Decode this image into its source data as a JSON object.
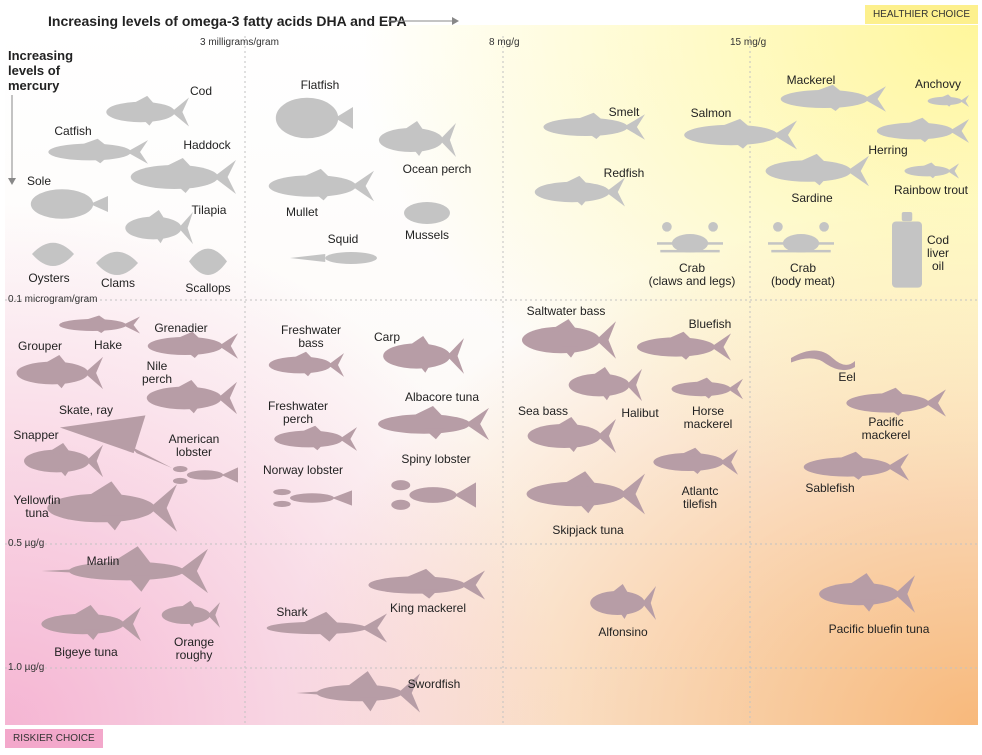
{
  "chart_data": {
    "type": "scatter",
    "title": "Increasing levels of omega-3 fatty acids DHA and EPA",
    "ylabel": "Increasing levels of mercury",
    "x_ticks": [
      "3 milligrams/gram",
      "8 mg/g",
      "15 mg/g"
    ],
    "y_ticks": [
      "0.1 microgram/gram",
      "0.5 µg/g",
      "1.0 µg/g"
    ],
    "corner_top": "HEALTHIER CHOICE",
    "corner_bottom": "RISKIER CHOICE",
    "grid": true,
    "items": [
      {
        "name": "Cod",
        "omega3_band": "<3 mg/g",
        "mercury_band": "<0.1 µg/g"
      },
      {
        "name": "Catfish",
        "omega3_band": "<3 mg/g",
        "mercury_band": "<0.1 µg/g"
      },
      {
        "name": "Haddock",
        "omega3_band": "<3 mg/g",
        "mercury_band": "<0.1 µg/g"
      },
      {
        "name": "Sole",
        "omega3_band": "<3 mg/g",
        "mercury_band": "<0.1 µg/g"
      },
      {
        "name": "Tilapia",
        "omega3_band": "<3 mg/g",
        "mercury_band": "<0.1 µg/g"
      },
      {
        "name": "Oysters",
        "omega3_band": "<3 mg/g",
        "mercury_band": "<0.1 µg/g"
      },
      {
        "name": "Clams",
        "omega3_band": "<3 mg/g",
        "mercury_band": "<0.1 µg/g"
      },
      {
        "name": "Scallops",
        "omega3_band": "<3 mg/g",
        "mercury_band": "<0.1 µg/g"
      },
      {
        "name": "Flatfish",
        "omega3_band": "3-8 mg/g",
        "mercury_band": "<0.1 µg/g"
      },
      {
        "name": "Ocean perch",
        "omega3_band": "3-8 mg/g",
        "mercury_band": "<0.1 µg/g"
      },
      {
        "name": "Mullet",
        "omega3_band": "3-8 mg/g",
        "mercury_band": "<0.1 µg/g"
      },
      {
        "name": "Mussels",
        "omega3_band": "3-8 mg/g",
        "mercury_band": "<0.1 µg/g"
      },
      {
        "name": "Squid",
        "omega3_band": "3-8 mg/g",
        "mercury_band": "<0.1 µg/g"
      },
      {
        "name": "Smelt",
        "omega3_band": "8-15 mg/g",
        "mercury_band": "<0.1 µg/g"
      },
      {
        "name": "Redfish",
        "omega3_band": "8-15 mg/g",
        "mercury_band": "<0.1 µg/g"
      },
      {
        "name": "Crab\n(claws and legs)",
        "omega3_band": "8-15 mg/g",
        "mercury_band": "<0.1 µg/g"
      },
      {
        "name": "Salmon",
        "omega3_band": "8-15 mg/g",
        "mercury_band": "<0.1 µg/g"
      },
      {
        "name": "Crab\n(body meat)",
        "omega3_band": ">15 mg/g",
        "mercury_band": "<0.1 µg/g"
      },
      {
        "name": "Mackerel",
        "omega3_band": ">15 mg/g",
        "mercury_band": "<0.1 µg/g"
      },
      {
        "name": "Anchovy",
        "omega3_band": ">15 mg/g",
        "mercury_band": "<0.1 µg/g"
      },
      {
        "name": "Herring",
        "omega3_band": ">15 mg/g",
        "mercury_band": "<0.1 µg/g"
      },
      {
        "name": "Rainbow trout",
        "omega3_band": ">15 mg/g",
        "mercury_band": "<0.1 µg/g"
      },
      {
        "name": "Sardine",
        "omega3_band": ">15 mg/g",
        "mercury_band": "<0.1 µg/g"
      },
      {
        "name": "Cod\nliver\noil",
        "omega3_band": ">15 mg/g",
        "mercury_band": "<0.1 µg/g"
      },
      {
        "name": "Hake",
        "omega3_band": "<3 mg/g",
        "mercury_band": "0.1-0.5 µg/g"
      },
      {
        "name": "Grenadier",
        "omega3_band": "<3 mg/g",
        "mercury_band": "0.1-0.5 µg/g"
      },
      {
        "name": "Grouper",
        "omega3_band": "<3 mg/g",
        "mercury_band": "0.1-0.5 µg/g"
      },
      {
        "name": "Nile\nperch",
        "omega3_band": "<3 mg/g",
        "mercury_band": "0.1-0.5 µg/g"
      },
      {
        "name": "Skate, ray",
        "omega3_band": "<3 mg/g",
        "mercury_band": "0.1-0.5 µg/g"
      },
      {
        "name": "Snapper",
        "omega3_band": "<3 mg/g",
        "mercury_band": "0.1-0.5 µg/g"
      },
      {
        "name": "American\nlobster",
        "omega3_band": "<3 mg/g",
        "mercury_band": "0.1-0.5 µg/g"
      },
      {
        "name": "Yellowfin\ntuna",
        "omega3_band": "<3 mg/g",
        "mercury_band": "0.1-0.5 µg/g"
      },
      {
        "name": "Freshwater\nbass",
        "omega3_band": "3-8 mg/g",
        "mercury_band": "0.1-0.5 µg/g"
      },
      {
        "name": "Carp",
        "omega3_band": "3-8 mg/g",
        "mercury_band": "0.1-0.5 µg/g"
      },
      {
        "name": "Freshwater\nperch",
        "omega3_band": "3-8 mg/g",
        "mercury_band": "0.1-0.5 µg/g"
      },
      {
        "name": "Albacore tuna",
        "omega3_band": "3-8 mg/g",
        "mercury_band": "0.1-0.5 µg/g"
      },
      {
        "name": "Norway lobster",
        "omega3_band": "3-8 mg/g",
        "mercury_band": "0.1-0.5 µg/g"
      },
      {
        "name": "Spiny lobster",
        "omega3_band": "3-8 mg/g",
        "mercury_band": "0.1-0.5 µg/g"
      },
      {
        "name": "Saltwater bass",
        "omega3_band": "8-15 mg/g",
        "mercury_band": "0.1-0.5 µg/g"
      },
      {
        "name": "Bluefish",
        "omega3_band": "8-15 mg/g",
        "mercury_band": "0.1-0.5 µg/g"
      },
      {
        "name": "Sea bass",
        "omega3_band": "8-15 mg/g",
        "mercury_band": "0.1-0.5 µg/g"
      },
      {
        "name": "Halibut",
        "omega3_band": "8-15 mg/g",
        "mercury_band": "0.1-0.5 µg/g"
      },
      {
        "name": "Horse\nmackerel",
        "omega3_band": "8-15 mg/g",
        "mercury_band": "0.1-0.5 µg/g"
      },
      {
        "name": "Atlantc\ntilefish",
        "omega3_band": "8-15 mg/g",
        "mercury_band": "0.1-0.5 µg/g"
      },
      {
        "name": "Skipjack tuna",
        "omega3_band": "8-15 mg/g",
        "mercury_band": "0.1-0.5 µg/g"
      },
      {
        "name": "Eel",
        "omega3_band": ">15 mg/g",
        "mercury_band": "0.1-0.5 µg/g"
      },
      {
        "name": "Pacific\nmackerel",
        "omega3_band": ">15 mg/g",
        "mercury_band": "0.1-0.5 µg/g"
      },
      {
        "name": "Sablefish",
        "omega3_band": ">15 mg/g",
        "mercury_band": "0.1-0.5 µg/g"
      },
      {
        "name": "Marlin",
        "omega3_band": "<3 mg/g",
        "mercury_band": "0.5-1.0 µg/g"
      },
      {
        "name": "Bigeye tuna",
        "omega3_band": "<3 mg/g",
        "mercury_band": "0.5-1.0 µg/g"
      },
      {
        "name": "Orange\nroughy",
        "omega3_band": "<3 mg/g",
        "mercury_band": "0.5-1.0 µg/g"
      },
      {
        "name": "Shark",
        "omega3_band": "3-8 mg/g",
        "mercury_band": "0.5-1.0 µg/g"
      },
      {
        "name": "King mackerel",
        "omega3_band": "3-8 mg/g",
        "mercury_band": "0.5-1.0 µg/g"
      },
      {
        "name": "Alfonsino",
        "omega3_band": "8-15 mg/g",
        "mercury_band": "0.5-1.0 µg/g"
      },
      {
        "name": "Pacific bluefin tuna",
        "omega3_band": ">15 mg/g",
        "mercury_band": "0.5-1.0 µg/g"
      },
      {
        "name": "Swordfish",
        "omega3_band": "3-8 mg/g",
        "mercury_band": ">1.0 µg/g"
      }
    ]
  },
  "colors": {
    "healthy": "#fff3a0",
    "risky_low_omega": "#f4a9cc",
    "risky_high_omega": "#f7b46a",
    "silhouette_top": "#c4c4c4",
    "silhouette_bottom": "#b79da6",
    "grid": "#c2c2c2"
  }
}
